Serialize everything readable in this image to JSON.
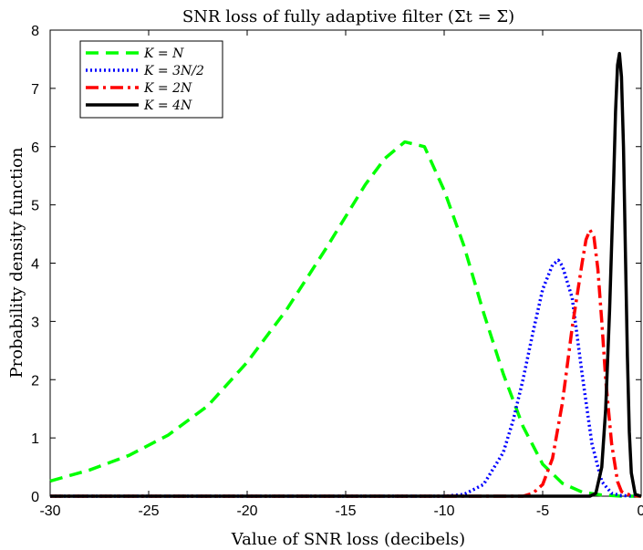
{
  "chart_data": {
    "type": "line",
    "title": "SNR loss of fully adaptive filter (Σt = Σ)",
    "xlabel": "Value of SNR loss (decibels)",
    "ylabel": "Probability density function",
    "xlim": [
      -30,
      0
    ],
    "ylim": [
      0,
      8
    ],
    "xticks": [
      "-30",
      "-25",
      "-20",
      "-15",
      "-10",
      "-5",
      "0"
    ],
    "yticks": [
      "0",
      "1",
      "2",
      "3",
      "4",
      "5",
      "6",
      "7",
      "8"
    ],
    "grid": false,
    "legend_position": "top-left",
    "series": [
      {
        "name": "K = N",
        "color": "#00ff00",
        "dash": "dashed",
        "x": [
          -30,
          -28,
          -26,
          -24,
          -22,
          -20,
          -18,
          -16,
          -14,
          -13,
          -12,
          -11,
          -10,
          -9,
          -8,
          -7,
          -6,
          -5,
          -4,
          -3,
          -2,
          -1,
          0
        ],
        "y": [
          0.26,
          0.45,
          0.7,
          1.05,
          1.55,
          2.3,
          3.2,
          4.25,
          5.35,
          5.8,
          6.08,
          6.0,
          5.25,
          4.3,
          3.15,
          2.1,
          1.2,
          0.55,
          0.22,
          0.07,
          0.02,
          0.0,
          0.0
        ]
      },
      {
        "name": "K = 3N/2",
        "color": "#0000ff",
        "dash": "dotted",
        "x": [
          -30,
          -10,
          -9,
          -8,
          -7,
          -6.5,
          -6,
          -5.5,
          -5,
          -4.5,
          -4.2,
          -4,
          -3.5,
          -3,
          -2.5,
          -2,
          -1.5,
          -1,
          0
        ],
        "y": [
          0,
          0,
          0.03,
          0.2,
          0.75,
          1.3,
          2.0,
          2.8,
          3.55,
          3.97,
          4.05,
          3.95,
          3.4,
          2.1,
          0.9,
          0.25,
          0.05,
          0.01,
          0
        ]
      },
      {
        "name": "K = 2N",
        "color": "#ff0000",
        "dash": "dashdot",
        "x": [
          -30,
          -6,
          -5.5,
          -5,
          -4.5,
          -4,
          -3.5,
          -3,
          -2.8,
          -2.6,
          -2.4,
          -2.2,
          -2,
          -1.8,
          -1.5,
          -1.2,
          -1,
          -0.5,
          0
        ],
        "y": [
          0,
          0,
          0.05,
          0.2,
          0.65,
          1.6,
          2.9,
          4.0,
          4.4,
          4.57,
          4.45,
          3.9,
          3.0,
          2.0,
          0.9,
          0.25,
          0.08,
          0.01,
          0
        ]
      },
      {
        "name": "K = 4N",
        "color": "#000000",
        "dash": "solid",
        "x": [
          -30,
          -2.6,
          -2.3,
          -2,
          -1.8,
          -1.6,
          -1.4,
          -1.3,
          -1.2,
          -1.1,
          -1.0,
          -0.9,
          -0.8,
          -0.7,
          -0.6,
          -0.5,
          -0.3,
          0
        ],
        "y": [
          0,
          0,
          0.05,
          0.5,
          1.5,
          3.2,
          5.4,
          6.6,
          7.4,
          7.6,
          7.2,
          6.0,
          4.2,
          2.4,
          1.1,
          0.4,
          0.03,
          0
        ]
      }
    ]
  }
}
